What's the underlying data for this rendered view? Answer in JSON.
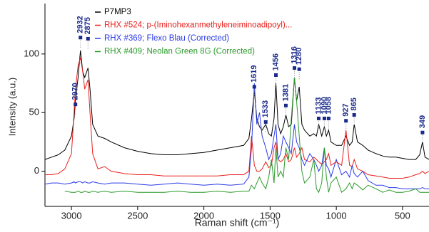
{
  "chart_data": {
    "type": "line",
    "x_label": "Raman shift (cm⁻¹)",
    "y_label": "Intensity (a.u.)",
    "xlim": [
      3200,
      300
    ],
    "ylim": [
      -30,
      143
    ],
    "xticks": [
      3000,
      2500,
      2000,
      1500,
      1000,
      500
    ],
    "yticks": [
      0,
      50,
      100
    ],
    "legend": "top",
    "x": [
      3200,
      3150,
      3100,
      3050,
      3000,
      2980,
      2970,
      2950,
      2932,
      2915,
      2900,
      2875,
      2860,
      2840,
      2800,
      2750,
      2700,
      2600,
      2500,
      2400,
      2300,
      2200,
      2100,
      2000,
      1900,
      1800,
      1700,
      1660,
      1640,
      1619,
      1600,
      1580,
      1560,
      1533,
      1510,
      1490,
      1470,
      1456,
      1440,
      1420,
      1400,
      1381,
      1360,
      1340,
      1316,
      1300,
      1280,
      1260,
      1240,
      1200,
      1170,
      1150,
      1133,
      1110,
      1090,
      1075,
      1058,
      1040,
      1000,
      960,
      927,
      900,
      880,
      865,
      840,
      800,
      760,
      700,
      650,
      600,
      550,
      500,
      450,
      400,
      370,
      349,
      330,
      300
    ],
    "series": [
      {
        "name": "P7MP3",
        "color": "#000000",
        "values": [
          10,
          12,
          14,
          18,
          30,
          45,
          60,
          80,
          103,
          85,
          80,
          88,
          70,
          40,
          30,
          28,
          25,
          20,
          17,
          15,
          14,
          14,
          15,
          16,
          18,
          20,
          22,
          28,
          45,
          68,
          45,
          38,
          35,
          40,
          32,
          30,
          45,
          75,
          40,
          32,
          38,
          48,
          38,
          40,
          80,
          60,
          72,
          40,
          35,
          30,
          32,
          30,
          40,
          30,
          38,
          30,
          35,
          25,
          22,
          22,
          30,
          22,
          25,
          40,
          25,
          22,
          18,
          15,
          13,
          12,
          12,
          11,
          10,
          10,
          14,
          25,
          12,
          10
        ]
      },
      {
        "name": "RHX #524; p-(Iminohexanmethyleneiminoadipoyl)...",
        "color": "#e8201c",
        "values": [
          -3,
          -3,
          -2,
          2,
          15,
          50,
          70,
          90,
          97,
          85,
          70,
          78,
          50,
          15,
          2,
          4,
          0,
          -2,
          -3,
          -3,
          -4,
          -4,
          -4,
          -4,
          -4,
          -3,
          -3,
          0,
          30,
          5,
          0,
          0,
          2,
          8,
          3,
          5,
          20,
          25,
          10,
          8,
          10,
          15,
          8,
          10,
          20,
          12,
          15,
          20,
          10,
          8,
          12,
          10,
          8,
          6,
          8,
          10,
          15,
          5,
          8,
          5,
          35,
          5,
          4,
          10,
          2,
          0,
          -3,
          -4,
          -5,
          -6,
          -6,
          -6,
          -5,
          -3,
          -2,
          0,
          -2,
          0
        ]
      },
      {
        "name": "RHX #369; Flexo Blau (Corrected)",
        "color": "#2a3ae8",
        "values": [
          -11,
          -10,
          -10,
          -11,
          -10,
          -9,
          -10,
          -9,
          -9,
          -10,
          -9,
          -10,
          -10,
          -9,
          -10,
          -11,
          -10,
          -10,
          -11,
          -12,
          -11,
          -10,
          -11,
          -12,
          -11,
          -12,
          -11,
          -5,
          20,
          75,
          40,
          50,
          30,
          20,
          10,
          15,
          30,
          40,
          10,
          15,
          30,
          25,
          20,
          15,
          40,
          25,
          20,
          10,
          5,
          15,
          10,
          5,
          0,
          5,
          20,
          5,
          2,
          -5,
          10,
          -3,
          0,
          -5,
          5,
          -2,
          -5,
          0,
          -8,
          -12,
          -12,
          -14,
          -14,
          -15,
          -15,
          -15,
          -15,
          -14,
          -15,
          -15
        ]
      },
      {
        "name": "RHX #409; Neolan Green 8G (Corrected)",
        "color": "#2a9a2a",
        "values": [
          null,
          null,
          null,
          -17,
          -18,
          -18,
          -18,
          -17,
          -18,
          -18,
          -17,
          -18,
          -18,
          -17,
          -18,
          -17,
          -18,
          -17,
          -18,
          -18,
          -18,
          -17,
          -18,
          -18,
          -17,
          -18,
          -17,
          -17,
          -12,
          -15,
          -10,
          -5,
          -10,
          -15,
          -5,
          10,
          -10,
          20,
          -5,
          0,
          -5,
          20,
          10,
          45,
          80,
          60,
          30,
          0,
          -10,
          -5,
          10,
          -15,
          -18,
          -10,
          20,
          -5,
          -18,
          -10,
          -5,
          -18,
          -15,
          -10,
          -15,
          -10,
          -12,
          -16,
          -12,
          -15,
          -18,
          -16,
          -18,
          -18,
          -17,
          -15,
          -18,
          -18,
          -18,
          -18
        ]
      }
    ],
    "annotations": [
      {
        "x": 2970,
        "y": 57
      },
      {
        "x": 2932,
        "y": 114
      },
      {
        "x": 2875,
        "y": 113
      },
      {
        "x": 1619,
        "y": 72
      },
      {
        "x": 1533,
        "y": 42
      },
      {
        "x": 1456,
        "y": 82
      },
      {
        "x": 1381,
        "y": 56
      },
      {
        "x": 1316,
        "y": 88
      },
      {
        "x": 1280,
        "y": 87
      },
      {
        "x": 1133,
        "y": 45
      },
      {
        "x": 1090,
        "y": 45
      },
      {
        "x": 1058,
        "y": 45
      },
      {
        "x": 927,
        "y": 43
      },
      {
        "x": 865,
        "y": 48
      },
      {
        "x": 349,
        "y": 33
      }
    ]
  }
}
